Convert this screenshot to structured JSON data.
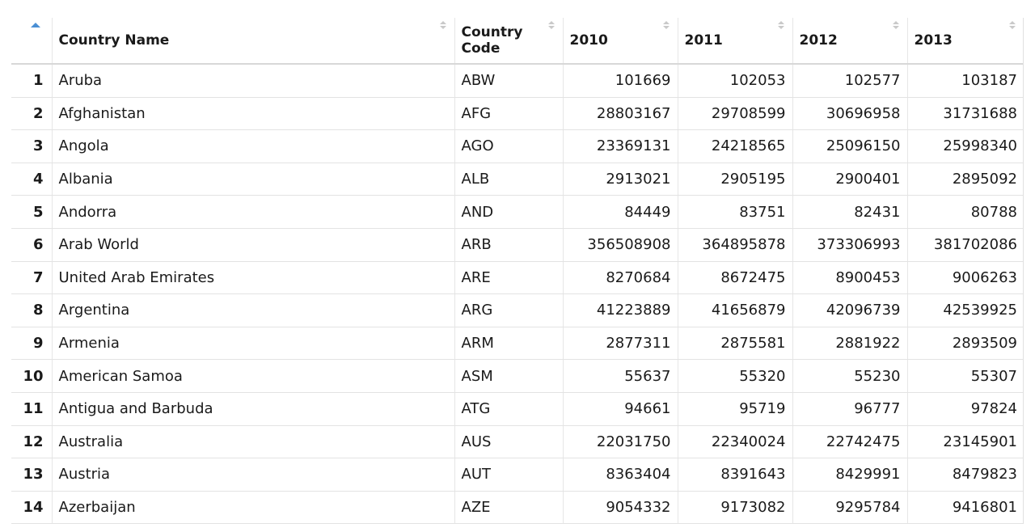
{
  "table": {
    "columns": [
      "",
      "Country Name",
      "Country Code",
      "2010",
      "2011",
      "2012",
      "2013"
    ],
    "rows": [
      {
        "idx": "1",
        "name": "Aruba",
        "code": "ABW",
        "y2010": "101669",
        "y2011": "102053",
        "y2012": "102577",
        "y2013": "103187"
      },
      {
        "idx": "2",
        "name": "Afghanistan",
        "code": "AFG",
        "y2010": "28803167",
        "y2011": "29708599",
        "y2012": "30696958",
        "y2013": "31731688"
      },
      {
        "idx": "3",
        "name": "Angola",
        "code": "AGO",
        "y2010": "23369131",
        "y2011": "24218565",
        "y2012": "25096150",
        "y2013": "25998340"
      },
      {
        "idx": "4",
        "name": "Albania",
        "code": "ALB",
        "y2010": "2913021",
        "y2011": "2905195",
        "y2012": "2900401",
        "y2013": "2895092"
      },
      {
        "idx": "5",
        "name": "Andorra",
        "code": "AND",
        "y2010": "84449",
        "y2011": "83751",
        "y2012": "82431",
        "y2013": "80788"
      },
      {
        "idx": "6",
        "name": "Arab World",
        "code": "ARB",
        "y2010": "356508908",
        "y2011": "364895878",
        "y2012": "373306993",
        "y2013": "381702086"
      },
      {
        "idx": "7",
        "name": "United Arab Emirates",
        "code": "ARE",
        "y2010": "8270684",
        "y2011": "8672475",
        "y2012": "8900453",
        "y2013": "9006263"
      },
      {
        "idx": "8",
        "name": "Argentina",
        "code": "ARG",
        "y2010": "41223889",
        "y2011": "41656879",
        "y2012": "42096739",
        "y2013": "42539925"
      },
      {
        "idx": "9",
        "name": "Armenia",
        "code": "ARM",
        "y2010": "2877311",
        "y2011": "2875581",
        "y2012": "2881922",
        "y2013": "2893509"
      },
      {
        "idx": "10",
        "name": "American Samoa",
        "code": "ASM",
        "y2010": "55637",
        "y2011": "55320",
        "y2012": "55230",
        "y2013": "55307"
      },
      {
        "idx": "11",
        "name": "Antigua and Barbuda",
        "code": "ATG",
        "y2010": "94661",
        "y2011": "95719",
        "y2012": "96777",
        "y2013": "97824"
      },
      {
        "idx": "12",
        "name": "Australia",
        "code": "AUS",
        "y2010": "22031750",
        "y2011": "22340024",
        "y2012": "22742475",
        "y2013": "23145901"
      },
      {
        "idx": "13",
        "name": "Austria",
        "code": "AUT",
        "y2010": "8363404",
        "y2011": "8391643",
        "y2012": "8429991",
        "y2013": "8479823"
      },
      {
        "idx": "14",
        "name": "Azerbaijan",
        "code": "AZE",
        "y2010": "9054332",
        "y2011": "9173082",
        "y2012": "9295784",
        "y2013": "9416801"
      }
    ]
  },
  "colors": {
    "sort_active": "#4a8fd4",
    "sort_inactive": "#c9c9c9",
    "border": "#e3e3e3"
  },
  "sort": {
    "active_icon": "sort-ascending-icon",
    "inactive_icon": "sort-both-icon"
  }
}
